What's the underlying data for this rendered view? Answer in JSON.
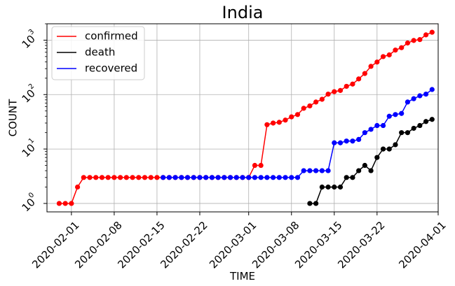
{
  "chart_data": {
    "type": "line",
    "title": "India",
    "xlabel": "TIME",
    "ylabel": "COUNT",
    "yscale": "log",
    "ylim": [
      0.7,
      2000
    ],
    "xlim": [
      "2020-01-28",
      "2020-04-01"
    ],
    "grid": true,
    "legend_position": "top-left",
    "x_ticks": [
      "2020-02-01",
      "2020-02-08",
      "2020-02-15",
      "2020-02-22",
      "2020-03-01",
      "2020-03-08",
      "2020-03-15",
      "2020-03-22",
      "2020-04-01"
    ],
    "y_ticks": [
      {
        "value": 1,
        "base": "10",
        "exp": "0"
      },
      {
        "value": 10,
        "base": "10",
        "exp": "1"
      },
      {
        "value": 100,
        "base": "10",
        "exp": "2"
      },
      {
        "value": 1000,
        "base": "10",
        "exp": "3"
      }
    ],
    "series": [
      {
        "name": "confirmed",
        "color": "#ff0000",
        "points": [
          [
            "2020-01-30",
            1
          ],
          [
            "2020-01-31",
            1
          ],
          [
            "2020-02-01",
            1
          ],
          [
            "2020-02-02",
            2
          ],
          [
            "2020-02-03",
            3
          ],
          [
            "2020-02-04",
            3
          ],
          [
            "2020-02-05",
            3
          ],
          [
            "2020-02-06",
            3
          ],
          [
            "2020-02-07",
            3
          ],
          [
            "2020-02-08",
            3
          ],
          [
            "2020-02-09",
            3
          ],
          [
            "2020-02-10",
            3
          ],
          [
            "2020-02-11",
            3
          ],
          [
            "2020-02-12",
            3
          ],
          [
            "2020-02-13",
            3
          ],
          [
            "2020-02-14",
            3
          ],
          [
            "2020-02-15",
            3
          ],
          [
            "2020-02-16",
            3
          ],
          [
            "2020-02-17",
            3
          ],
          [
            "2020-02-18",
            3
          ],
          [
            "2020-02-19",
            3
          ],
          [
            "2020-02-20",
            3
          ],
          [
            "2020-02-21",
            3
          ],
          [
            "2020-02-22",
            3
          ],
          [
            "2020-02-23",
            3
          ],
          [
            "2020-02-24",
            3
          ],
          [
            "2020-02-25",
            3
          ],
          [
            "2020-02-26",
            3
          ],
          [
            "2020-02-27",
            3
          ],
          [
            "2020-02-28",
            3
          ],
          [
            "2020-02-29",
            3
          ],
          [
            "2020-03-01",
            3
          ],
          [
            "2020-03-02",
            5
          ],
          [
            "2020-03-03",
            5
          ],
          [
            "2020-03-04",
            28
          ],
          [
            "2020-03-05",
            30
          ],
          [
            "2020-03-06",
            31
          ],
          [
            "2020-03-07",
            34
          ],
          [
            "2020-03-08",
            39
          ],
          [
            "2020-03-09",
            43
          ],
          [
            "2020-03-10",
            56
          ],
          [
            "2020-03-11",
            62
          ],
          [
            "2020-03-12",
            73
          ],
          [
            "2020-03-13",
            82
          ],
          [
            "2020-03-14",
            102
          ],
          [
            "2020-03-15",
            113
          ],
          [
            "2020-03-16",
            119
          ],
          [
            "2020-03-17",
            142
          ],
          [
            "2020-03-18",
            156
          ],
          [
            "2020-03-19",
            194
          ],
          [
            "2020-03-20",
            244
          ],
          [
            "2020-03-21",
            330
          ],
          [
            "2020-03-22",
            396
          ],
          [
            "2020-03-23",
            499
          ],
          [
            "2020-03-24",
            536
          ],
          [
            "2020-03-25",
            657
          ],
          [
            "2020-03-26",
            727
          ],
          [
            "2020-03-27",
            887
          ],
          [
            "2020-03-28",
            987
          ],
          [
            "2020-03-29",
            1024
          ],
          [
            "2020-03-30",
            1251
          ],
          [
            "2020-03-31",
            1397
          ]
        ]
      },
      {
        "name": "death",
        "color": "#000000",
        "points": [
          [
            "2020-03-11",
            1
          ],
          [
            "2020-03-12",
            1
          ],
          [
            "2020-03-13",
            2
          ],
          [
            "2020-03-14",
            2
          ],
          [
            "2020-03-15",
            2
          ],
          [
            "2020-03-16",
            2
          ],
          [
            "2020-03-17",
            3
          ],
          [
            "2020-03-18",
            3
          ],
          [
            "2020-03-19",
            4
          ],
          [
            "2020-03-20",
            5
          ],
          [
            "2020-03-21",
            4
          ],
          [
            "2020-03-22",
            7
          ],
          [
            "2020-03-23",
            10
          ],
          [
            "2020-03-24",
            10
          ],
          [
            "2020-03-25",
            12
          ],
          [
            "2020-03-26",
            20
          ],
          [
            "2020-03-27",
            20
          ],
          [
            "2020-03-28",
            24
          ],
          [
            "2020-03-29",
            27
          ],
          [
            "2020-03-30",
            32
          ],
          [
            "2020-03-31",
            35
          ]
        ]
      },
      {
        "name": "recovered",
        "color": "#0000ff",
        "points": [
          [
            "2020-02-16",
            3
          ],
          [
            "2020-02-17",
            3
          ],
          [
            "2020-02-18",
            3
          ],
          [
            "2020-02-19",
            3
          ],
          [
            "2020-02-20",
            3
          ],
          [
            "2020-02-21",
            3
          ],
          [
            "2020-02-22",
            3
          ],
          [
            "2020-02-23",
            3
          ],
          [
            "2020-02-24",
            3
          ],
          [
            "2020-02-25",
            3
          ],
          [
            "2020-02-26",
            3
          ],
          [
            "2020-02-27",
            3
          ],
          [
            "2020-02-28",
            3
          ],
          [
            "2020-02-29",
            3
          ],
          [
            "2020-03-01",
            3
          ],
          [
            "2020-03-02",
            3
          ],
          [
            "2020-03-03",
            3
          ],
          [
            "2020-03-04",
            3
          ],
          [
            "2020-03-05",
            3
          ],
          [
            "2020-03-06",
            3
          ],
          [
            "2020-03-07",
            3
          ],
          [
            "2020-03-08",
            3
          ],
          [
            "2020-03-09",
            3
          ],
          [
            "2020-03-10",
            4
          ],
          [
            "2020-03-11",
            4
          ],
          [
            "2020-03-12",
            4
          ],
          [
            "2020-03-13",
            4
          ],
          [
            "2020-03-14",
            4
          ],
          [
            "2020-03-15",
            13
          ],
          [
            "2020-03-16",
            13
          ],
          [
            "2020-03-17",
            14
          ],
          [
            "2020-03-18",
            14
          ],
          [
            "2020-03-19",
            15
          ],
          [
            "2020-03-20",
            20
          ],
          [
            "2020-03-21",
            23
          ],
          [
            "2020-03-22",
            27
          ],
          [
            "2020-03-23",
            27
          ],
          [
            "2020-03-24",
            40
          ],
          [
            "2020-03-25",
            43
          ],
          [
            "2020-03-26",
            45
          ],
          [
            "2020-03-27",
            73
          ],
          [
            "2020-03-28",
            84
          ],
          [
            "2020-03-29",
            95
          ],
          [
            "2020-03-30",
            102
          ],
          [
            "2020-03-31",
            124
          ]
        ]
      }
    ]
  }
}
